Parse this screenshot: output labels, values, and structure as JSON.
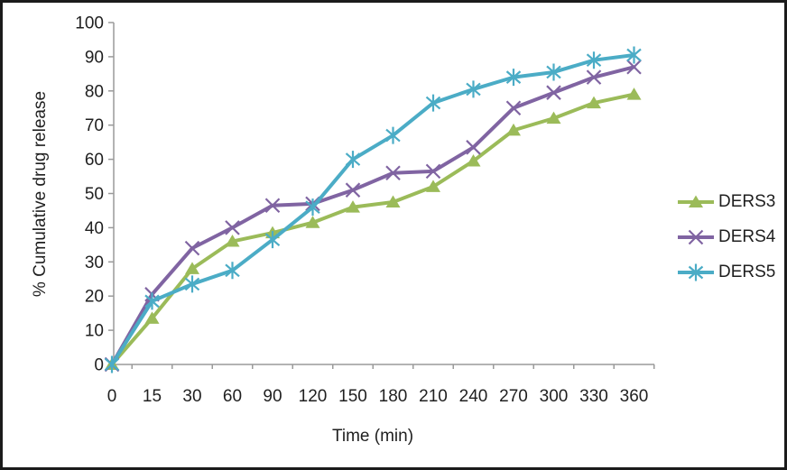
{
  "chart_data": {
    "type": "line",
    "title": "",
    "xlabel": "Time (min)",
    "ylabel": "% Cumulative drug release",
    "categories": [
      "0",
      "15",
      "30",
      "60",
      "90",
      "120",
      "150",
      "180",
      "210",
      "240",
      "270",
      "300",
      "330",
      "360"
    ],
    "yticks": [
      0,
      10,
      20,
      30,
      40,
      50,
      60,
      70,
      80,
      90,
      100
    ],
    "ylim": [
      0,
      100
    ],
    "grid": false,
    "legend_position": "right",
    "series": [
      {
        "name": "DERS3",
        "marker": "triangle",
        "color": "#9BBB59",
        "values": [
          0,
          13.5,
          28,
          36,
          38.5,
          41.5,
          46,
          47.5,
          52,
          59.5,
          68.5,
          72,
          76.5,
          79
        ]
      },
      {
        "name": "DERS4",
        "marker": "x",
        "color": "#8064A2",
        "values": [
          0,
          20.5,
          34,
          40,
          46.5,
          47,
          51,
          56,
          56.5,
          63.5,
          75,
          79.5,
          84,
          87
        ]
      },
      {
        "name": "DERS5",
        "marker": "asterisk",
        "color": "#4BACC6",
        "values": [
          0,
          18.5,
          23.5,
          27.5,
          36.5,
          46,
          60,
          67,
          76.5,
          80.5,
          84,
          85.5,
          89,
          90.5
        ]
      }
    ],
    "colors": {
      "axis": "#9a9a9a",
      "text": "#1f1f1f",
      "frame_border": "#1b1b1b",
      "background": "#ffffff"
    }
  }
}
